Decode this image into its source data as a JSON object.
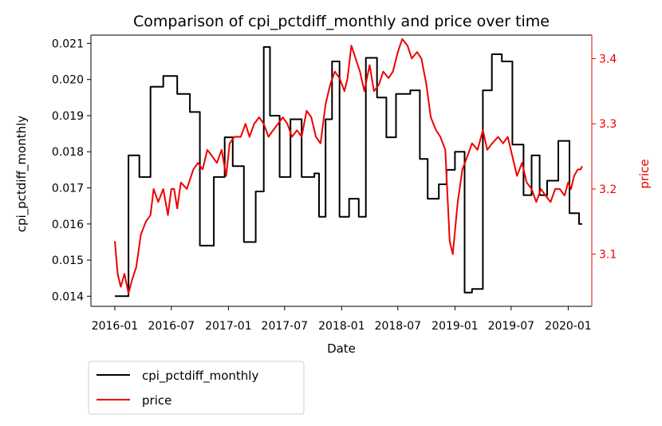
{
  "chart_data": {
    "type": "line",
    "title": "Comparison of cpi_pctdiff_monthly and price over time",
    "xlabel": "Date",
    "ylabel_left": "cpi_pctdiff_monthly",
    "ylabel_right": "price",
    "xlim": [
      "2015-10-16",
      "2020-03-17"
    ],
    "ylim_left": [
      0.01372,
      0.02123
    ],
    "ylim_right": [
      3.02,
      3.436
    ],
    "x_ticks": [
      "2016-01",
      "2016-07",
      "2017-01",
      "2017-07",
      "2018-01",
      "2018-07",
      "2019-01",
      "2019-07",
      "2020-01"
    ],
    "y_ticks_left": [
      "0.014",
      "0.015",
      "0.016",
      "0.017",
      "0.018",
      "0.019",
      "0.020",
      "0.021"
    ],
    "y_ticks_right": [
      "3.1",
      "3.2",
      "3.3",
      "3.4"
    ],
    "legend_position": "below-left",
    "colors": {
      "cpi": "#000000",
      "price": "#ee0000",
      "right_axis": "#ee0000"
    },
    "series": [
      {
        "name": "cpi_pctdiff_monthly",
        "axis": "left",
        "step": true,
        "points": [
          [
            "2016-01-01",
            0.014
          ],
          [
            "2016-02-14",
            0.0179
          ],
          [
            "2016-03-20",
            0.0173
          ],
          [
            "2016-04-25",
            0.0198
          ],
          [
            "2016-06-05",
            0.0201
          ],
          [
            "2016-07-20",
            0.0196
          ],
          [
            "2016-08-30",
            0.0191
          ],
          [
            "2016-10-01",
            0.0154
          ],
          [
            "2016-11-15",
            0.0173
          ],
          [
            "2016-12-20",
            0.0184
          ],
          [
            "2017-01-15",
            0.0176
          ],
          [
            "2017-02-20",
            0.0155
          ],
          [
            "2017-03-30",
            0.0169
          ],
          [
            "2017-04-25",
            0.0209
          ],
          [
            "2017-05-15",
            0.019
          ],
          [
            "2017-06-15",
            0.0173
          ],
          [
            "2017-07-20",
            0.0189
          ],
          [
            "2017-08-25",
            0.0173
          ],
          [
            "2017-10-05",
            0.0174
          ],
          [
            "2017-10-20",
            0.0162
          ],
          [
            "2017-11-10",
            0.0189
          ],
          [
            "2017-12-01",
            0.0205
          ],
          [
            "2017-12-25",
            0.0162
          ],
          [
            "2018-01-25",
            0.0167
          ],
          [
            "2018-02-25",
            0.0162
          ],
          [
            "2018-03-20",
            0.0206
          ],
          [
            "2018-04-25",
            0.0195
          ],
          [
            "2018-05-25",
            0.0184
          ],
          [
            "2018-06-25",
            0.0196
          ],
          [
            "2018-08-10",
            0.0197
          ],
          [
            "2018-09-10",
            0.0178
          ],
          [
            "2018-10-05",
            0.0167
          ],
          [
            "2018-11-10",
            0.0171
          ],
          [
            "2018-12-05",
            0.0175
          ],
          [
            "2019-01-01",
            0.018
          ],
          [
            "2019-02-01",
            0.0141
          ],
          [
            "2019-02-25",
            0.0142
          ],
          [
            "2019-04-01",
            0.0197
          ],
          [
            "2019-04-30",
            0.0207
          ],
          [
            "2019-06-01",
            0.0205
          ],
          [
            "2019-07-05",
            0.0182
          ],
          [
            "2019-08-10",
            0.0168
          ],
          [
            "2019-09-05",
            0.0179
          ],
          [
            "2019-10-01",
            0.0168
          ],
          [
            "2019-10-25",
            0.0172
          ],
          [
            "2019-11-30",
            0.0183
          ],
          [
            "2020-01-05",
            0.0163
          ],
          [
            "2020-02-05",
            0.016
          ],
          [
            "2020-02-15",
            0.016
          ]
        ]
      },
      {
        "name": "price",
        "axis": "right",
        "step": false,
        "points": [
          [
            "2016-01-01",
            3.12
          ],
          [
            "2016-01-10",
            3.07
          ],
          [
            "2016-01-20",
            3.05
          ],
          [
            "2016-02-01",
            3.07
          ],
          [
            "2016-02-14",
            3.04
          ],
          [
            "2016-02-25",
            3.06
          ],
          [
            "2016-03-10",
            3.08
          ],
          [
            "2016-03-25",
            3.13
          ],
          [
            "2016-04-10",
            3.15
          ],
          [
            "2016-04-25",
            3.16
          ],
          [
            "2016-05-05",
            3.2
          ],
          [
            "2016-05-20",
            3.18
          ],
          [
            "2016-06-05",
            3.2
          ],
          [
            "2016-06-20",
            3.16
          ],
          [
            "2016-07-01",
            3.2
          ],
          [
            "2016-07-10",
            3.2
          ],
          [
            "2016-07-20",
            3.17
          ],
          [
            "2016-08-01",
            3.21
          ],
          [
            "2016-08-20",
            3.2
          ],
          [
            "2016-09-10",
            3.23
          ],
          [
            "2016-09-25",
            3.24
          ],
          [
            "2016-10-10",
            3.23
          ],
          [
            "2016-10-25",
            3.26
          ],
          [
            "2016-11-10",
            3.25
          ],
          [
            "2016-11-25",
            3.24
          ],
          [
            "2016-12-10",
            3.26
          ],
          [
            "2016-12-25",
            3.22
          ],
          [
            "2017-01-05",
            3.27
          ],
          [
            "2017-01-20",
            3.28
          ],
          [
            "2017-02-10",
            3.28
          ],
          [
            "2017-02-25",
            3.3
          ],
          [
            "2017-03-10",
            3.28
          ],
          [
            "2017-03-25",
            3.3
          ],
          [
            "2017-04-10",
            3.31
          ],
          [
            "2017-04-25",
            3.3
          ],
          [
            "2017-05-10",
            3.28
          ],
          [
            "2017-05-25",
            3.29
          ],
          [
            "2017-06-10",
            3.3
          ],
          [
            "2017-06-25",
            3.31
          ],
          [
            "2017-07-10",
            3.3
          ],
          [
            "2017-07-25",
            3.28
          ],
          [
            "2017-08-10",
            3.29
          ],
          [
            "2017-08-25",
            3.28
          ],
          [
            "2017-09-10",
            3.32
          ],
          [
            "2017-09-25",
            3.31
          ],
          [
            "2017-10-10",
            3.28
          ],
          [
            "2017-10-25",
            3.27
          ],
          [
            "2017-11-10",
            3.33
          ],
          [
            "2017-11-25",
            3.36
          ],
          [
            "2017-12-10",
            3.38
          ],
          [
            "2017-12-25",
            3.37
          ],
          [
            "2018-01-10",
            3.35
          ],
          [
            "2018-01-20",
            3.37
          ],
          [
            "2018-02-01",
            3.42
          ],
          [
            "2018-02-15",
            3.4
          ],
          [
            "2018-03-01",
            3.38
          ],
          [
            "2018-03-15",
            3.35
          ],
          [
            "2018-04-01",
            3.39
          ],
          [
            "2018-04-15",
            3.35
          ],
          [
            "2018-05-01",
            3.36
          ],
          [
            "2018-05-15",
            3.38
          ],
          [
            "2018-06-01",
            3.37
          ],
          [
            "2018-06-15",
            3.38
          ],
          [
            "2018-07-01",
            3.41
          ],
          [
            "2018-07-15",
            3.43
          ],
          [
            "2018-08-01",
            3.42
          ],
          [
            "2018-08-15",
            3.4
          ],
          [
            "2018-09-01",
            3.41
          ],
          [
            "2018-09-15",
            3.4
          ],
          [
            "2018-10-01",
            3.36
          ],
          [
            "2018-10-15",
            3.31
          ],
          [
            "2018-11-01",
            3.29
          ],
          [
            "2018-11-15",
            3.28
          ],
          [
            "2018-12-01",
            3.26
          ],
          [
            "2018-12-15",
            3.12
          ],
          [
            "2018-12-25",
            3.1
          ],
          [
            "2019-01-10",
            3.18
          ],
          [
            "2019-01-25",
            3.23
          ],
          [
            "2019-02-10",
            3.25
          ],
          [
            "2019-02-25",
            3.27
          ],
          [
            "2019-03-15",
            3.26
          ],
          [
            "2019-04-01",
            3.29
          ],
          [
            "2019-04-15",
            3.26
          ],
          [
            "2019-05-01",
            3.27
          ],
          [
            "2019-05-20",
            3.28
          ],
          [
            "2019-06-05",
            3.27
          ],
          [
            "2019-06-20",
            3.28
          ],
          [
            "2019-07-05",
            3.25
          ],
          [
            "2019-07-20",
            3.22
          ],
          [
            "2019-08-05",
            3.24
          ],
          [
            "2019-08-20",
            3.21
          ],
          [
            "2019-09-05",
            3.2
          ],
          [
            "2019-09-20",
            3.18
          ],
          [
            "2019-10-05",
            3.2
          ],
          [
            "2019-10-20",
            3.19
          ],
          [
            "2019-11-05",
            3.18
          ],
          [
            "2019-11-20",
            3.2
          ],
          [
            "2019-12-05",
            3.2
          ],
          [
            "2019-12-20",
            3.19
          ],
          [
            "2020-01-01",
            3.21
          ],
          [
            "2020-01-10",
            3.2
          ],
          [
            "2020-01-20",
            3.22
          ],
          [
            "2020-02-01",
            3.23
          ],
          [
            "2020-02-10",
            3.23
          ],
          [
            "2020-02-15",
            3.235
          ]
        ]
      }
    ]
  }
}
